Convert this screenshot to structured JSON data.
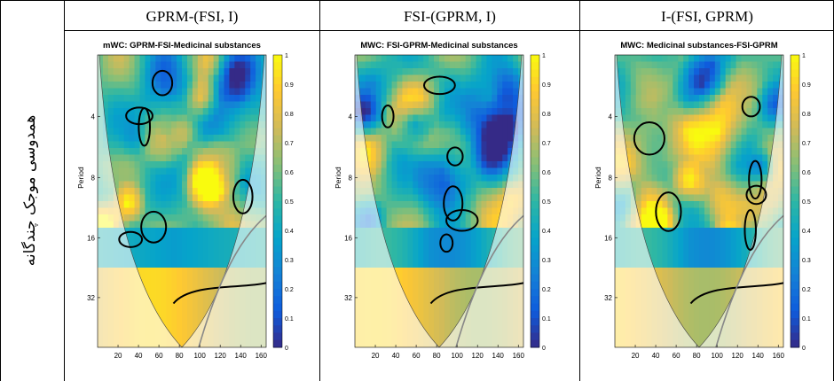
{
  "table": {
    "row_label": "همدوسی موجک چندگانه",
    "columns": [
      "GPRM-(FSI, I)",
      "FSI-(GPRM, I)",
      "I-(FSI, GPRM)"
    ]
  },
  "plots": [
    {
      "title": "mWC: GPRM-FSI-Medicinal substances"
    },
    {
      "title": "MWC: FSI-GPRM-Medicinal substances"
    },
    {
      "title": "MWC: Medicinal substances-FSI-GPRM"
    }
  ],
  "axes": {
    "ylabel": "Period",
    "yticks": [
      "4",
      "8",
      "16",
      "32"
    ],
    "xticks": [
      "20",
      "40",
      "60",
      "80",
      "100",
      "120",
      "140",
      "160"
    ],
    "cbar_ticks": [
      "0",
      "0.1",
      "0.2",
      "0.3",
      "0.4",
      "0.5",
      "0.6",
      "0.7",
      "0.8",
      "0.9",
      "1"
    ]
  },
  "chart_data": [
    {
      "type": "heatmap",
      "title": "mWC: GPRM-FSI-Medicinal substances",
      "ylabel": "Period",
      "x_ticks": [
        20,
        40,
        60,
        80,
        100,
        120,
        140,
        160
      ],
      "y_ticks": [
        4,
        8,
        16,
        32
      ],
      "zlim": [
        0,
        1
      ]
    },
    {
      "type": "heatmap",
      "title": "MWC: FSI-GPRM-Medicinal substances",
      "ylabel": "Period",
      "x_ticks": [
        20,
        40,
        60,
        80,
        100,
        120,
        140,
        160
      ],
      "y_ticks": [
        4,
        8,
        16,
        32
      ],
      "zlim": [
        0,
        1
      ]
    },
    {
      "type": "heatmap",
      "title": "MWC: Medicinal substances-FSI-GPRM",
      "ylabel": "Period",
      "x_ticks": [
        20,
        40,
        60,
        80,
        100,
        120,
        140,
        160
      ],
      "y_ticks": [
        4,
        8,
        16,
        32
      ],
      "zlim": [
        0,
        1
      ]
    }
  ],
  "colors": {
    "parula": [
      "#352a87",
      "#0f5cdd",
      "#1481d6",
      "#06a4ca",
      "#2eb7a4",
      "#87bf77",
      "#d1bb59",
      "#fec832",
      "#f9fb0e"
    ]
  }
}
